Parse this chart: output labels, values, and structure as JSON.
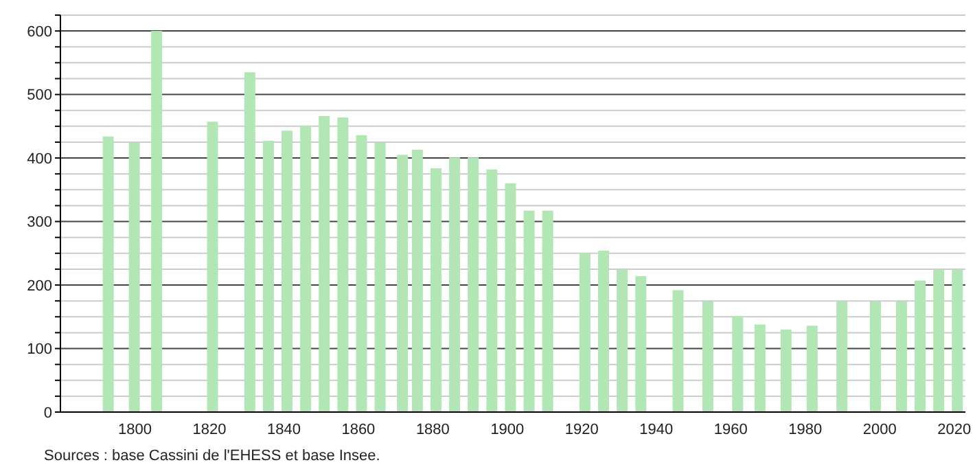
{
  "chart_data": {
    "type": "bar",
    "x": [
      1793,
      1800,
      1806,
      1821,
      1831,
      1836,
      1841,
      1846,
      1851,
      1856,
      1861,
      1866,
      1872,
      1876,
      1881,
      1886,
      1891,
      1896,
      1901,
      1906,
      1911,
      1921,
      1926,
      1931,
      1936,
      1946,
      1954,
      1962,
      1968,
      1975,
      1982,
      1990,
      1999,
      2006,
      2011,
      2016,
      2021
    ],
    "values": [
      434,
      424,
      600,
      457,
      535,
      427,
      443,
      451,
      466,
      464,
      436,
      424,
      405,
      413,
      384,
      401,
      401,
      382,
      360,
      317,
      317,
      250,
      254,
      224,
      214,
      192,
      174,
      151,
      138,
      130,
      136,
      174,
      174,
      174,
      207,
      224,
      224
    ],
    "color": "#b3e6b5",
    "xlim": [
      1780,
      2023
    ],
    "xticks": [
      1800,
      1820,
      1840,
      1860,
      1880,
      1900,
      1920,
      1940,
      1960,
      1980,
      2000,
      2020
    ],
    "ylim": [
      0,
      625
    ],
    "yticks": [
      0,
      {
        "value": 25,
        "label": null
      },
      {
        "value": 50,
        "label": null
      },
      {
        "value": 75,
        "label": null
      },
      100,
      {
        "value": 125,
        "label": null
      },
      {
        "value": 150,
        "label": null
      },
      {
        "value": 175,
        "label": null
      },
      200,
      {
        "value": 225,
        "label": null
      },
      {
        "value": 250,
        "label": null
      },
      {
        "value": 275,
        "label": null
      },
      300,
      {
        "value": 325,
        "label": null
      },
      {
        "value": 350,
        "label": null
      },
      {
        "value": 375,
        "label": null
      },
      400,
      {
        "value": 425,
        "label": null
      },
      {
        "value": 450,
        "label": null
      },
      {
        "value": 475,
        "label": null
      },
      500,
      {
        "value": 525,
        "label": null
      },
      {
        "value": 550,
        "label": null
      },
      {
        "value": 575,
        "label": null
      },
      600,
      {
        "value": 625,
        "label": null
      }
    ],
    "grid": true,
    "annotations": [
      "Sources : base Cassini de l'EHESS et base Insee."
    ]
  }
}
